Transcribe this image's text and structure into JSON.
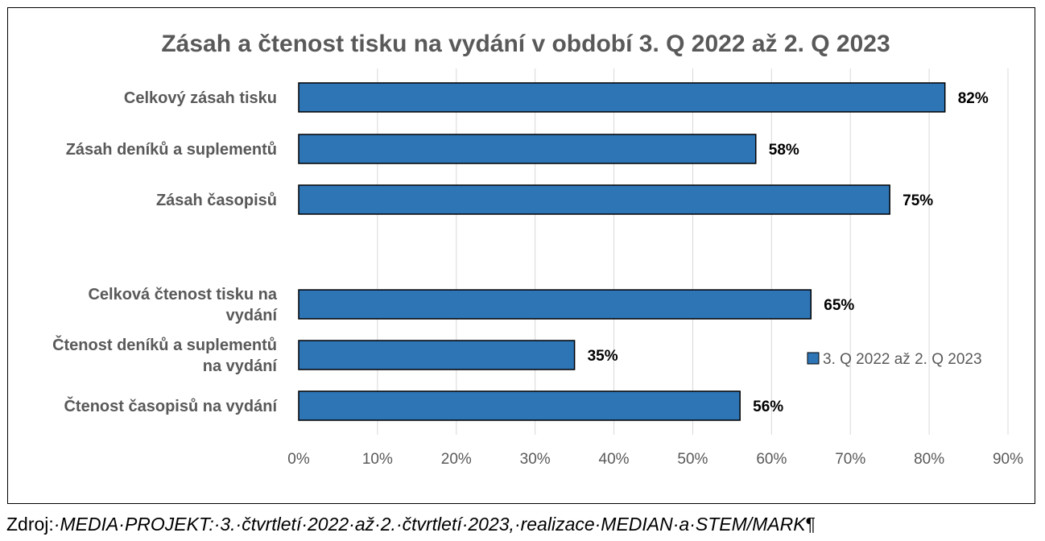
{
  "chart_data": {
    "type": "bar",
    "orientation": "horizontal",
    "title": "Zásah a čtenost tisku na vydání v období 3. Q  2022 až 2. Q  2023",
    "categories": [
      "Celkový zásah tisku",
      "Zásah deníků a suplementů",
      "Zásah časopisů",
      "",
      "Celková čtenost tisku na vydání",
      "Čtenost deníků a suplementů na vydání",
      "Čtenost časopisů na vydání"
    ],
    "category_lines": [
      [
        "Celkový zásah tisku"
      ],
      [
        "Zásah deníků a suplementů"
      ],
      [
        "Zásah časopisů"
      ],
      [],
      [
        "Celková čtenost tisku na",
        "vydání"
      ],
      [
        "Čtenost deníků a suplementů",
        "na vydání"
      ],
      [
        "Čtenost časopisů na vydání"
      ]
    ],
    "series": [
      {
        "name": "3. Q 2022 až 2. Q 2023",
        "values": [
          82,
          58,
          75,
          null,
          65,
          35,
          56
        ],
        "data_labels": [
          "82%",
          "58%",
          "75%",
          "",
          "65%",
          "35%",
          "56%"
        ]
      }
    ],
    "xlim": [
      0,
      90
    ],
    "x_ticks": [
      0,
      10,
      20,
      30,
      40,
      50,
      60,
      70,
      80,
      90
    ],
    "x_tick_labels": [
      "0%",
      "10%",
      "20%",
      "30%",
      "40%",
      "50%",
      "60%",
      "70%",
      "80%",
      "90%"
    ],
    "grid": "vertical",
    "legend_position": "right",
    "colors": {
      "bar": "#2e75b6",
      "bar_border": "#000000",
      "grid": "#d9d9d9",
      "title": "#595959",
      "category_text": "#595959",
      "tick_text": "#595959",
      "data_label": "#000000"
    }
  },
  "footer": {
    "label": "Zdroj:",
    "text": "·MEDIA·PROJEKT:·3.·čtvrtletí·2022·až·2.·čtvrtletí·2023,·realizace·MEDIAN·a·STEM/MARK",
    "mark": "¶"
  }
}
